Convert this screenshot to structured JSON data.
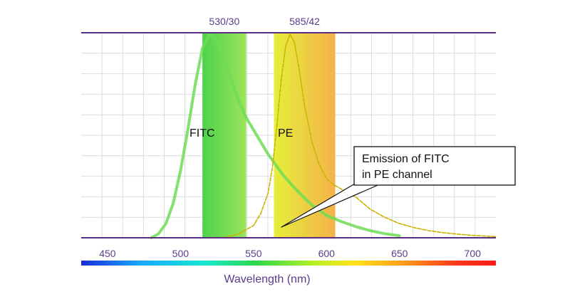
{
  "chart_data": {
    "type": "line",
    "title": "",
    "xlabel": "Wavelength (nm)",
    "ylabel": "",
    "xlim": [
      432,
      716
    ],
    "ylim": [
      0,
      1
    ],
    "grid": true,
    "xticks": [
      450,
      500,
      550,
      600,
      650,
      700
    ],
    "filters": [
      {
        "name": "530/30",
        "start": 515,
        "end": 545,
        "color_start": "#4fd24c",
        "color_end": "#9be45a"
      },
      {
        "name": "585/42",
        "start": 564,
        "end": 606,
        "color_start": "#e6ee3a",
        "color_end": "#f4b24a"
      }
    ],
    "series": [
      {
        "name": "FITC",
        "color": "#6fdc55",
        "style": "solid",
        "x": [
          480,
          485,
          490,
          495,
          500,
          505,
          510,
          515,
          520,
          525,
          530,
          535,
          540,
          545,
          550,
          555,
          560,
          565,
          570,
          575,
          580,
          590,
          600,
          610,
          620,
          630,
          640,
          650
        ],
        "values": [
          0.0,
          0.02,
          0.07,
          0.17,
          0.33,
          0.53,
          0.75,
          0.93,
          1.0,
          0.97,
          0.88,
          0.77,
          0.67,
          0.59,
          0.53,
          0.47,
          0.41,
          0.36,
          0.31,
          0.27,
          0.23,
          0.16,
          0.11,
          0.08,
          0.055,
          0.035,
          0.02,
          0.01
        ]
      },
      {
        "name": "PE",
        "color": "#c8b400",
        "style": "dashed",
        "x": [
          530,
          540,
          550,
          555,
          560,
          563,
          566,
          569,
          572,
          575,
          578,
          581,
          585,
          590,
          595,
          600,
          605,
          610,
          615,
          620,
          625,
          630,
          640,
          650,
          660,
          670,
          680,
          690,
          700,
          710,
          716
        ],
        "values": [
          0.0,
          0.02,
          0.06,
          0.12,
          0.22,
          0.35,
          0.55,
          0.78,
          0.94,
          1.0,
          0.96,
          0.84,
          0.65,
          0.47,
          0.36,
          0.29,
          0.26,
          0.24,
          0.22,
          0.2,
          0.17,
          0.14,
          0.1,
          0.07,
          0.05,
          0.035,
          0.025,
          0.018,
          0.012,
          0.008,
          0.006
        ]
      }
    ],
    "labels": {
      "fitc": "FITC",
      "pe": "PE"
    },
    "annotation": {
      "lines": [
        "Emission of FITC",
        "in PE channel"
      ],
      "target_x": 566
    }
  }
}
